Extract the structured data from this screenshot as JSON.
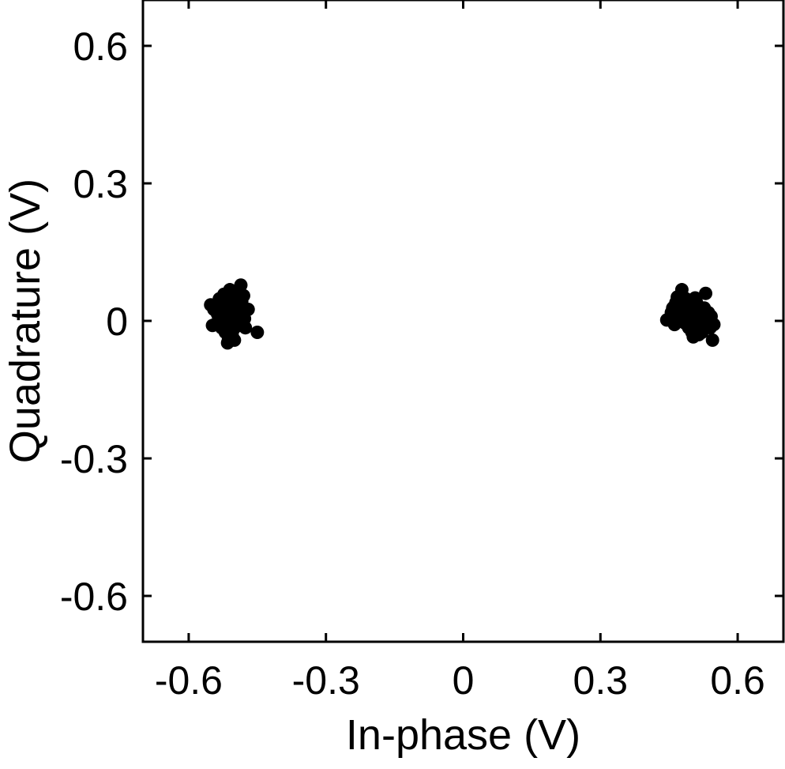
{
  "chart_data": {
    "type": "scatter",
    "title": "",
    "xlabel": "In-phase (V)",
    "ylabel": "Quadrature (V)",
    "xlim": [
      -0.7,
      0.7
    ],
    "ylim": [
      -0.7,
      0.7
    ],
    "xticks": [
      -0.6,
      -0.3,
      0,
      0.3,
      0.6
    ],
    "yticks": [
      -0.6,
      -0.3,
      0,
      0.3,
      0.6
    ],
    "xtick_labels": [
      "-0.6",
      "-0.3",
      "0",
      "0.3",
      "0.6"
    ],
    "ytick_labels": [
      "-0.6",
      "-0.3",
      "0",
      "0.3",
      "0.6"
    ],
    "grid": false,
    "legend": "none",
    "marker_color": "#000000",
    "series": [
      {
        "points": [
          [
            -0.521,
            0.012
          ],
          [
            -0.508,
            0.028
          ],
          [
            -0.495,
            0.005
          ],
          [
            -0.512,
            -0.01
          ],
          [
            -0.53,
            0.02
          ],
          [
            -0.503,
            0.045
          ],
          [
            -0.487,
            0.018
          ],
          [
            -0.52,
            -0.025
          ],
          [
            -0.498,
            0.06
          ],
          [
            -0.54,
            0.035
          ],
          [
            -0.515,
            0.052
          ],
          [
            -0.49,
            -0.005
          ],
          [
            -0.505,
            -0.03
          ],
          [
            -0.525,
            0.04
          ],
          [
            -0.482,
            0.03
          ],
          [
            -0.51,
            0.068
          ],
          [
            -0.535,
            0.002
          ],
          [
            -0.5,
            0.022
          ],
          [
            -0.518,
            0.038
          ],
          [
            -0.492,
            0.048
          ],
          [
            -0.528,
            -0.015
          ],
          [
            -0.507,
            0.01
          ],
          [
            -0.48,
            0.055
          ],
          [
            -0.513,
            -0.04
          ],
          [
            -0.545,
            0.025
          ],
          [
            -0.497,
            0.035
          ],
          [
            -0.523,
            0.058
          ],
          [
            -0.502,
            -0.018
          ],
          [
            -0.488,
            0.01
          ],
          [
            -0.533,
            0.048
          ],
          [
            -0.517,
            0.0
          ],
          [
            -0.494,
            0.065
          ],
          [
            -0.509,
            0.015
          ],
          [
            -0.47,
            0.025
          ],
          [
            -0.552,
            0.035
          ],
          [
            -0.486,
            0.078
          ],
          [
            -0.45,
            -0.025
          ],
          [
            -0.515,
            -0.048
          ],
          [
            -0.5,
            -0.042
          ],
          [
            -0.478,
            0.005
          ],
          [
            -0.526,
            0.008
          ],
          [
            -0.504,
            0.05
          ],
          [
            -0.491,
            0.04
          ],
          [
            -0.519,
            0.025
          ],
          [
            -0.496,
            -0.012
          ],
          [
            -0.537,
            0.015
          ],
          [
            -0.511,
            0.03
          ],
          [
            -0.484,
            0.042
          ],
          [
            -0.506,
            0.062
          ],
          [
            -0.522,
            -0.005
          ],
          [
            -0.476,
            -0.015
          ],
          [
            -0.548,
            -0.01
          ],
          [
            -0.499,
            0.0
          ],
          [
            -0.514,
            0.045
          ],
          [
            -0.529,
            0.03
          ]
        ]
      },
      {
        "points": [
          [
            0.48,
            0.02
          ],
          [
            0.495,
            0.005
          ],
          [
            0.505,
            -0.01
          ],
          [
            0.488,
            0.035
          ],
          [
            0.512,
            0.015
          ],
          [
            0.47,
            0.01
          ],
          [
            0.52,
            -0.02
          ],
          [
            0.498,
            0.045
          ],
          [
            0.46,
            0.03
          ],
          [
            0.53,
            0.005
          ],
          [
            0.485,
            -0.005
          ],
          [
            0.508,
            0.025
          ],
          [
            0.475,
            0.055
          ],
          [
            0.515,
            -0.03
          ],
          [
            0.492,
            0.015
          ],
          [
            0.54,
            -0.015
          ],
          [
            0.465,
            0.04
          ],
          [
            0.5,
            -0.025
          ],
          [
            0.525,
            0.02
          ],
          [
            0.478,
            0.068
          ],
          [
            0.49,
            0.025
          ],
          [
            0.51,
            0.04
          ],
          [
            0.455,
            0.018
          ],
          [
            0.535,
            -0.01
          ],
          [
            0.497,
            0.032
          ],
          [
            0.53,
            0.06
          ],
          [
            0.545,
            -0.042
          ],
          [
            0.445,
            0.002
          ],
          [
            0.503,
            -0.035
          ],
          [
            0.483,
            0.008
          ],
          [
            0.518,
            0.002
          ],
          [
            0.472,
            0.025
          ],
          [
            0.493,
            -0.015
          ],
          [
            0.527,
            0.028
          ],
          [
            0.507,
            0.05
          ],
          [
            0.462,
            -0.008
          ],
          [
            0.542,
            0.01
          ],
          [
            0.487,
            0.048
          ],
          [
            0.513,
            -0.005
          ],
          [
            0.5,
            0.01
          ],
          [
            0.476,
            0.038
          ],
          [
            0.522,
            -0.025
          ],
          [
            0.495,
            0.022
          ],
          [
            0.468,
            0.052
          ],
          [
            0.536,
            0.018
          ],
          [
            0.509,
            -0.018
          ],
          [
            0.481,
            0.012
          ],
          [
            0.548,
            -0.008
          ],
          [
            0.502,
            0.035
          ],
          [
            0.458,
            0.028
          ]
        ]
      }
    ]
  }
}
